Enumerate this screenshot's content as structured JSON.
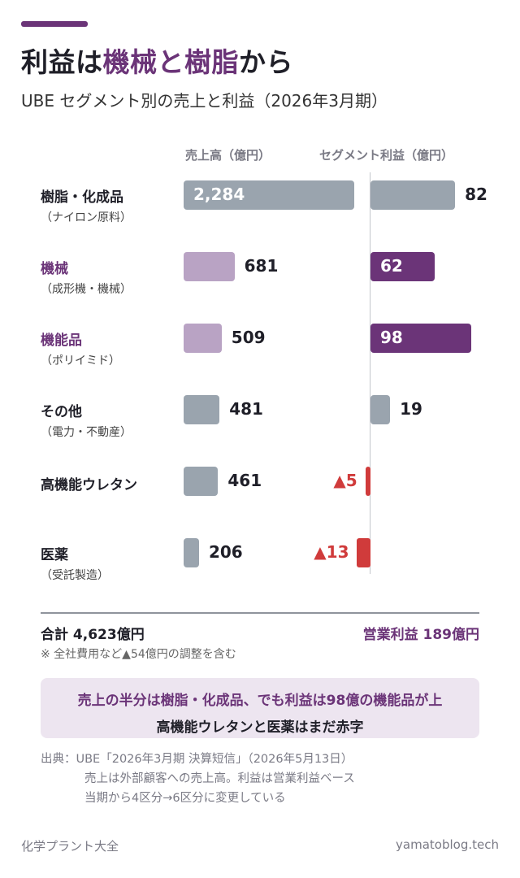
{
  "header": {
    "title_plain_1": "利益は",
    "title_hl": "機械と樹脂",
    "title_plain_2": "から",
    "subtitle": "UBE セグメント別の売上と利益（2026年3月期）"
  },
  "colors": {
    "accent": "#6b3478",
    "gray_bar": "#9aa4ae",
    "light_purple_bar": "#b9a3c4",
    "purple_bar": "#6b3478",
    "negative": "#d03b3b",
    "callout_bg": "#ede5f0"
  },
  "chart_data": {
    "type": "bar",
    "orientation": "horizontal",
    "categories": [
      "樹脂・化成品",
      "機械",
      "機能品",
      "その他",
      "高機能ウレタン",
      "医薬"
    ],
    "category_sublabels": [
      "（ナイロン原料）",
      "（成形機・機械）",
      "（ポリイミド）",
      "（電力・不動産）",
      "",
      "（受託製造）"
    ],
    "highlighted": [
      false,
      true,
      true,
      false,
      false,
      false
    ],
    "series": [
      {
        "name": "売上高（億円）",
        "values": [
          2284,
          681,
          509,
          481,
          461,
          206
        ],
        "labels": [
          "2,284",
          "681",
          "509",
          "481",
          "461",
          "206"
        ]
      },
      {
        "name": "セグメント利益（億円）",
        "values": [
          82,
          62,
          98,
          19,
          -5,
          -13
        ],
        "labels": [
          "82",
          "62",
          "98",
          "19",
          "▲5",
          "▲13"
        ]
      }
    ]
  },
  "summary": {
    "total": "合計 4,623億円",
    "operating_profit": "営業利益 189億円",
    "note": "※ 全社費用など▲54億円の調整を含む"
  },
  "callout": {
    "line1": "売上の半分は樹脂・化成品、でも利益は98億の機能品が上",
    "line2": "高機能ウレタンと医薬はまだ赤字"
  },
  "source": {
    "line1": "出典：UBE「2026年3月期 決算短信」（2026年5月13日）",
    "line2": "売上は外部顧客への売上高。利益は営業利益ベース",
    "line3": "当期から4区分→6区分に変更している"
  },
  "footer": {
    "left": "化学プラント大全",
    "right": "yamatoblog.tech"
  }
}
